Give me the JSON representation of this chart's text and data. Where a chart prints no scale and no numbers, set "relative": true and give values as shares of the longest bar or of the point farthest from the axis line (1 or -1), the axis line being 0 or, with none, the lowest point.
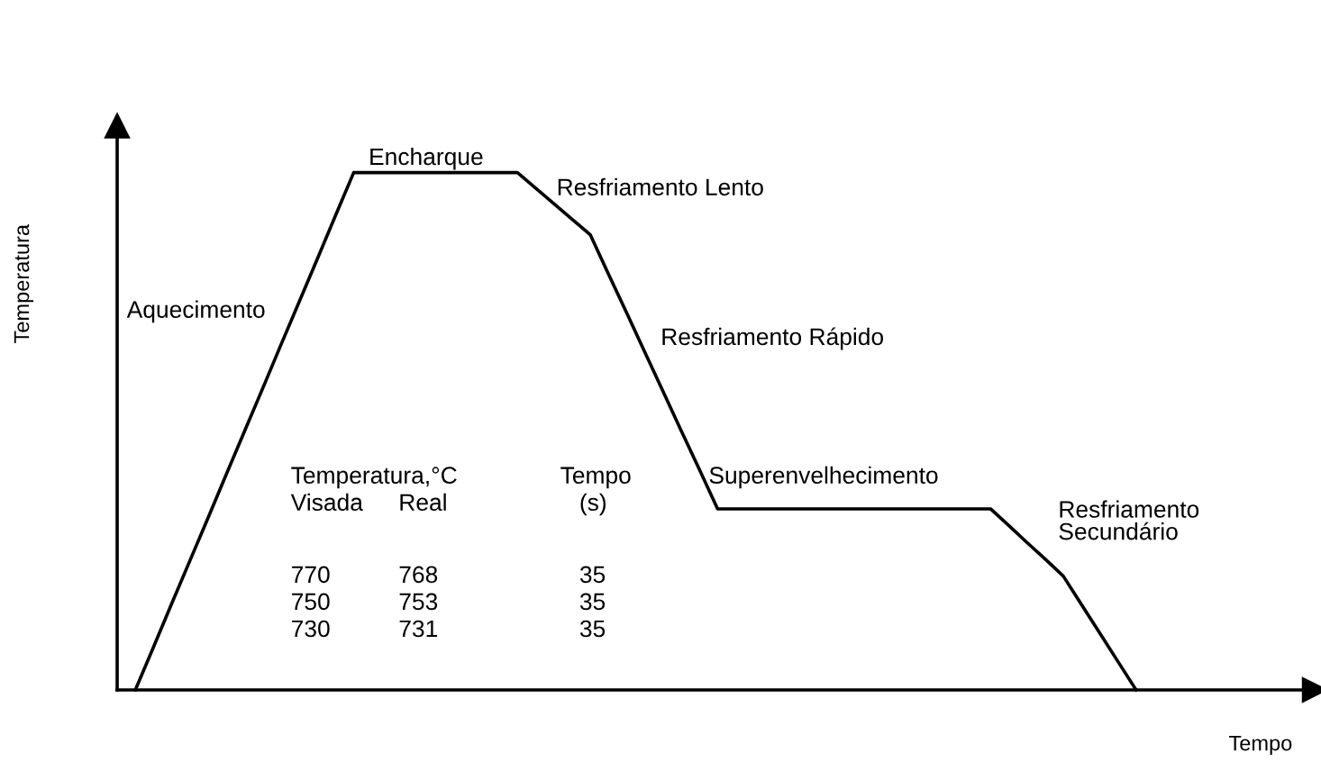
{
  "chart_data": {
    "type": "line",
    "relative": true,
    "xlabel": "Tempo",
    "ylabel": "Temperatura",
    "marker": "none",
    "line_style": "solid",
    "categories": [
      null,
      null,
      null,
      null,
      null,
      null,
      null,
      null,
      null,
      null,
      null,
      null,
      null,
      null,
      null,
      null,
      null,
      null,
      null,
      null,
      null,
      null,
      null,
      null,
      null,
      null,
      null,
      null,
      null,
      null,
      null,
      null,
      null,
      null,
      null,
      null,
      null,
      null,
      null,
      null,
      null,
      null,
      null,
      null,
      null,
      null,
      null,
      null,
      null,
      null,
      null,
      null,
      null,
      null,
      null,
      null
    ],
    "series": [
      {
        "color": "#000000",
        "values": [
          0,
          0.083,
          0.167,
          0.25,
          0.333,
          0.417,
          0.5,
          0.583,
          0.667,
          0.75,
          0.833,
          0.917,
          1,
          1,
          1,
          1,
          1,
          1,
          1,
          1,
          1,
          1,
          0.97,
          0.94,
          0.91,
          0.88,
          0.804,
          0.729,
          0.653,
          0.577,
          0.501,
          0.426,
          0.35,
          0.35,
          0.35,
          0.35,
          0.35,
          0.35,
          0.35,
          0.35,
          0.35,
          0.35,
          0.35,
          0.35,
          0.35,
          0.35,
          0.35,
          0.35,
          0.318,
          0.285,
          0.253,
          0.22,
          0.165,
          0.11,
          0.055,
          0
        ]
      }
    ],
    "annotations": [
      "Aquecimento",
      "Encharque",
      "Resfriamento Lento",
      "Resfriamento Rápido",
      "Superenvelhecimento",
      "Resfriamento\nSecundário",
      "Temperatura,°C",
      "Tempo",
      "Visada",
      "Real",
      "(s)",
      "770",
      "768",
      "35",
      "750",
      "753",
      "35",
      "730",
      "731",
      "35"
    ]
  }
}
